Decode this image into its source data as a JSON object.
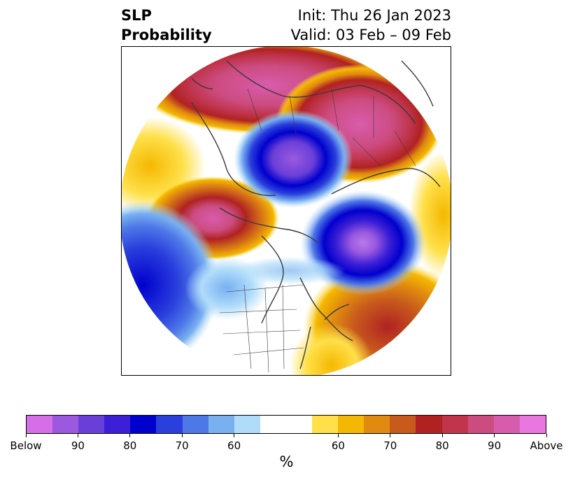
{
  "title": {
    "left_line1": "SLP",
    "left_line2": "Probability",
    "right_line1": "Init: Thu 26 Jan 2023",
    "right_line2": "Valid: 03 Feb – 09 Feb"
  },
  "colorbar": {
    "unit": "%",
    "colors": {
      "below": [
        "#d66ee8",
        "#9b59e0",
        "#6a3fd8",
        "#3c1fd6",
        "#0000cd",
        "#2a3fdc",
        "#4e78e8",
        "#78b0f0",
        "#b0dcfa"
      ],
      "neutral": "#ffffff",
      "above": [
        "#ffe04a",
        "#f4b800",
        "#e08a10",
        "#c85a1c",
        "#b02222",
        "#c0344c",
        "#cc4c80",
        "#d85cac",
        "#e878e0"
      ]
    },
    "tick_labels": [
      "Below",
      "90",
      "80",
      "70",
      "60",
      "60",
      "70",
      "80",
      "90",
      "Above"
    ]
  },
  "map": {
    "projection": "north-polar-stereographic",
    "features": [
      "coastlines",
      "country-borders",
      "us-state-borders"
    ]
  }
}
